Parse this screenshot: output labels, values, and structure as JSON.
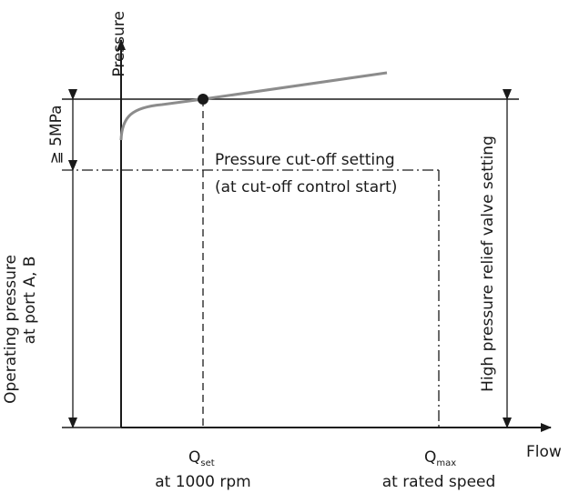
{
  "axes": {
    "y_label": "Pressure",
    "x_label": "Flow"
  },
  "labels": {
    "min_diff": "≧ 5MPa",
    "cutoff_line1": "Pressure cut-off setting",
    "cutoff_line2": "(at cut-off control start)",
    "operating_line1": "Operating pressure",
    "operating_line2": "at port A, B",
    "relief_setting": "High pressure relief valve setting"
  },
  "x_ticks": {
    "q_set_main": "Q",
    "q_set_sub": "set",
    "q_set_note": "at 1000 rpm",
    "q_max_main": "Q",
    "q_max_sub": "max",
    "q_max_note": "at rated speed"
  },
  "colors": {
    "curve": "#8c8c8c",
    "ink": "#1a1a1a"
  }
}
